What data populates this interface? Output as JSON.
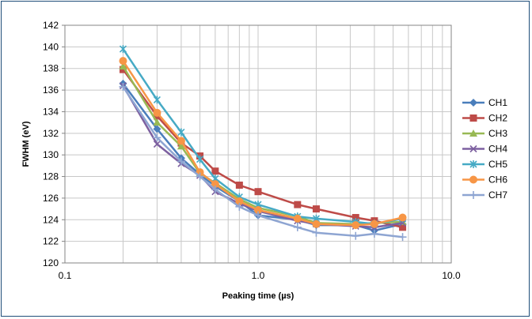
{
  "chart_data": {
    "type": "line",
    "xscale": "log",
    "xlabel": "Peaking time (µs)",
    "ylabel": "FWHM (eV)",
    "xlim": [
      0.1,
      10.0
    ],
    "ylim": [
      120,
      142
    ],
    "x_ticks": [
      "0.1",
      "1.0",
      "10.0"
    ],
    "y_ticks": [
      "120",
      "122",
      "124",
      "126",
      "128",
      "130",
      "132",
      "134",
      "136",
      "138",
      "140",
      "142"
    ],
    "grid": true,
    "legend_position": "right",
    "x": [
      0.2,
      0.3,
      0.4,
      0.5,
      0.6,
      0.8,
      1.0,
      1.6,
      2.0,
      3.2,
      4.0,
      5.6
    ],
    "series": [
      {
        "name": "CH1",
        "color": "#4a7ebb",
        "marker": "diamond",
        "values": [
          136.6,
          132.4,
          129.7,
          128.2,
          127.1,
          125.7,
          124.4,
          124.0,
          123.5,
          123.5,
          123.0,
          123.6
        ]
      },
      {
        "name": "CH2",
        "color": "#be4b48",
        "marker": "square",
        "values": [
          137.9,
          133.6,
          131.1,
          129.9,
          128.5,
          127.2,
          126.6,
          125.4,
          125.0,
          124.2,
          123.9,
          123.3
        ]
      },
      {
        "name": "CH3",
        "color": "#98b954",
        "marker": "triangle",
        "values": [
          138.2,
          133.0,
          130.8,
          128.3,
          127.4,
          125.9,
          125.1,
          124.3,
          123.7,
          123.6,
          123.7,
          123.8
        ]
      },
      {
        "name": "CH4",
        "color": "#7d60a0",
        "marker": "x",
        "values": [
          136.4,
          131.0,
          129.2,
          128.1,
          126.6,
          125.5,
          124.8,
          123.9,
          123.6,
          123.4,
          123.3,
          123.7
        ]
      },
      {
        "name": "CH5",
        "color": "#46aac5",
        "marker": "star",
        "values": [
          139.8,
          135.1,
          132.1,
          129.6,
          127.8,
          126.1,
          125.4,
          124.3,
          124.1,
          123.8,
          123.6,
          124.1
        ]
      },
      {
        "name": "CH6",
        "color": "#f79646",
        "marker": "circle",
        "values": [
          138.7,
          133.9,
          131.3,
          128.4,
          127.3,
          125.7,
          124.9,
          124.1,
          123.6,
          123.5,
          123.6,
          124.2
        ]
      },
      {
        "name": "CH7",
        "color": "#8ea5d2",
        "marker": "plus",
        "values": [
          136.3,
          131.6,
          129.4,
          128.0,
          126.8,
          125.2,
          124.4,
          123.3,
          122.8,
          122.5,
          122.7,
          122.4
        ]
      }
    ]
  }
}
